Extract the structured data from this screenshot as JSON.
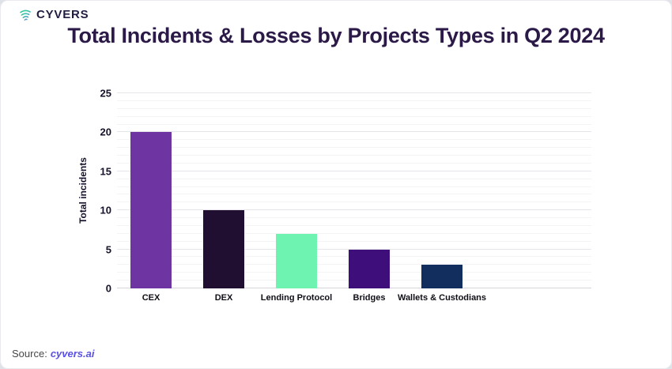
{
  "logo": {
    "text": "CYVERS",
    "icon": "cyvers-swirl-icon"
  },
  "source": {
    "label": "Source:",
    "link": "cyvers.ai"
  },
  "chart_data": {
    "type": "bar",
    "title": "Total Incidents & Losses by Projects Types in Q2 2024",
    "categories": [
      "CEX",
      "DEX",
      "Lending Protocol",
      "Bridges",
      "Wallets & Custodians"
    ],
    "values": [
      20,
      10,
      7,
      5,
      3
    ],
    "bar_colors": [
      "#6e34a1",
      "#200f30",
      "#6ef3b0",
      "#3e0e7a",
      "#112e5f"
    ],
    "xlabel": "",
    "ylabel": "Total incidents",
    "ylim": [
      0,
      25
    ],
    "yticks": [
      0,
      5,
      10,
      15,
      20,
      25
    ],
    "minor_grid_step": 1,
    "major_grid_step": 5,
    "grid": true,
    "legend": "none",
    "background": "#ffffff"
  },
  "colors": {
    "title": "#2b1947",
    "axis_text": "#17122b",
    "source_link": "#5950e8",
    "logo_gradient_start": "#2fd08f",
    "logo_gradient_end": "#7a5cf0"
  }
}
